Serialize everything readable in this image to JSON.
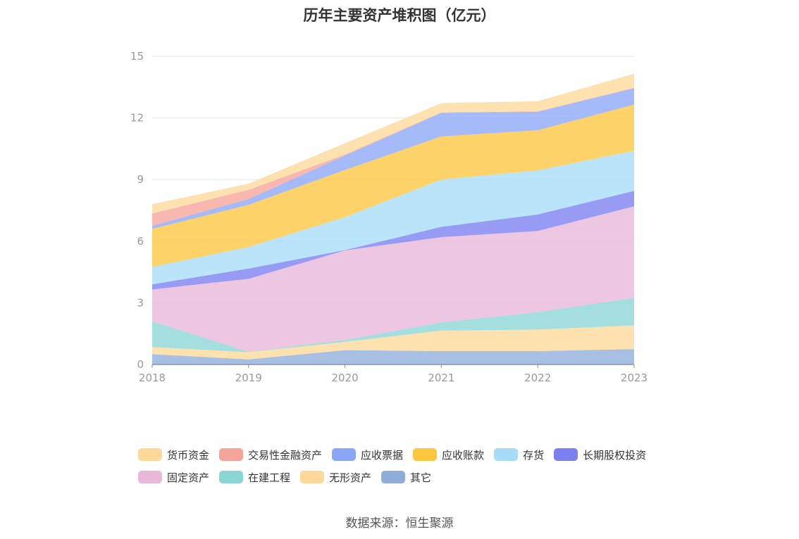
{
  "chart_data": {
    "type": "area",
    "stacked": true,
    "title": "历年主要资产堆积图（亿元）",
    "categories": [
      "2018",
      "2019",
      "2020",
      "2021",
      "2022",
      "2023"
    ],
    "ylim": [
      0,
      15
    ],
    "yticks": [
      0,
      3,
      6,
      9,
      12,
      15
    ],
    "grid": true,
    "legend_position": "bottom",
    "series": [
      {
        "name": "其它",
        "color": "#8eaddb",
        "values": [
          0.5,
          0.25,
          0.7,
          0.65,
          0.65,
          0.75
        ]
      },
      {
        "name": "无形资产",
        "color": "#fdd899",
        "values": [
          0.35,
          0.35,
          0.4,
          1.0,
          1.05,
          1.15
        ]
      },
      {
        "name": "在建工程",
        "color": "#8ad5d6",
        "values": [
          1.25,
          0.02,
          0.1,
          0.4,
          0.85,
          1.35
        ]
      },
      {
        "name": "固定资产",
        "color": "#e8b7d9",
        "values": [
          1.55,
          3.55,
          4.35,
          4.15,
          3.95,
          4.45
        ]
      },
      {
        "name": "长期股权投资",
        "color": "#7b7ff0",
        "values": [
          0.25,
          0.5,
          0.02,
          0.5,
          0.8,
          0.75
        ]
      },
      {
        "name": "存货",
        "color": "#a6dcf8",
        "values": [
          0.85,
          1.05,
          1.6,
          2.3,
          2.15,
          1.95
        ]
      },
      {
        "name": "应收账款",
        "color": "#fcc63f",
        "values": [
          1.85,
          2.05,
          2.3,
          2.1,
          1.95,
          2.25
        ]
      },
      {
        "name": "应收票据",
        "color": "#8aa7f7",
        "values": [
          0.15,
          0.28,
          0.7,
          1.15,
          0.9,
          0.8
        ]
      },
      {
        "name": "交易性金融资产",
        "color": "#f6a49a",
        "values": [
          0.6,
          0.45,
          0.05,
          0.02,
          0.02,
          0.02
        ]
      },
      {
        "name": "货币资金",
        "color": "#fdd899",
        "values": [
          0.45,
          0.3,
          0.55,
          0.45,
          0.5,
          0.68
        ]
      }
    ],
    "legend_order": [
      "货币资金",
      "交易性金融资产",
      "应收票据",
      "应收账款",
      "存货",
      "长期股权投资",
      "固定资产",
      "在建工程",
      "无形资产",
      "其它"
    ]
  },
  "source_text": "数据来源：恒生聚源"
}
